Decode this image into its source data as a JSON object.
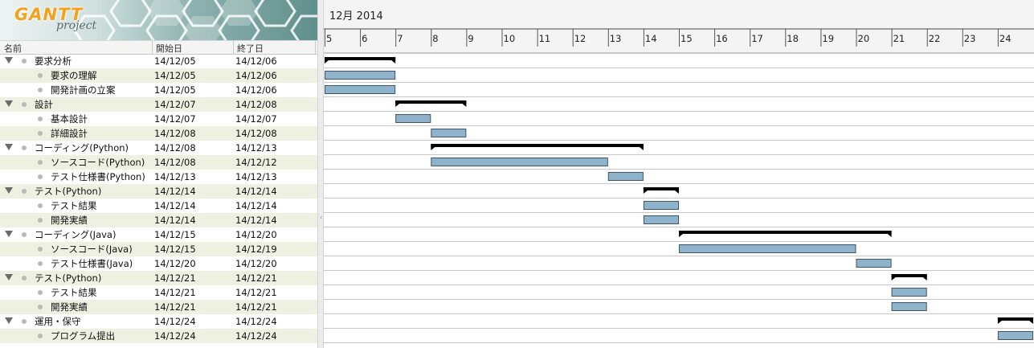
{
  "logo": {
    "brand": "GANTT",
    "sub": "project"
  },
  "table": {
    "headers": {
      "name": "名前",
      "start": "開始日",
      "end": "終了日"
    },
    "rows": [
      {
        "name": "要求分析",
        "start": "14/12/05",
        "end": "14/12/06",
        "group": true,
        "s": 5,
        "e": 7
      },
      {
        "name": "要求の理解",
        "start": "14/12/05",
        "end": "14/12/06",
        "group": false,
        "s": 5,
        "e": 7
      },
      {
        "name": "開発計画の立案",
        "start": "14/12/05",
        "end": "14/12/06",
        "group": false,
        "s": 5,
        "e": 7
      },
      {
        "name": "設計",
        "start": "14/12/07",
        "end": "14/12/08",
        "group": true,
        "s": 7,
        "e": 9
      },
      {
        "name": "基本設計",
        "start": "14/12/07",
        "end": "14/12/07",
        "group": false,
        "s": 7,
        "e": 8
      },
      {
        "name": "詳細設計",
        "start": "14/12/08",
        "end": "14/12/08",
        "group": false,
        "s": 8,
        "e": 9
      },
      {
        "name": "コーディング(Python)",
        "start": "14/12/08",
        "end": "14/12/13",
        "group": true,
        "s": 8,
        "e": 14
      },
      {
        "name": "ソースコード(Python)",
        "start": "14/12/08",
        "end": "14/12/12",
        "group": false,
        "s": 8,
        "e": 13
      },
      {
        "name": "テスト仕様書(Python)",
        "start": "14/12/13",
        "end": "14/12/13",
        "group": false,
        "s": 13,
        "e": 14
      },
      {
        "name": "テスト(Python)",
        "start": "14/12/14",
        "end": "14/12/14",
        "group": true,
        "s": 14,
        "e": 15
      },
      {
        "name": "テスト結果",
        "start": "14/12/14",
        "end": "14/12/14",
        "group": false,
        "s": 14,
        "e": 15
      },
      {
        "name": "開発実績",
        "start": "14/12/14",
        "end": "14/12/14",
        "group": false,
        "s": 14,
        "e": 15
      },
      {
        "name": "コーディング(Java)",
        "start": "14/12/15",
        "end": "14/12/20",
        "group": true,
        "s": 15,
        "e": 21
      },
      {
        "name": "ソースコード(Java)",
        "start": "14/12/15",
        "end": "14/12/19",
        "group": false,
        "s": 15,
        "e": 20
      },
      {
        "name": "テスト仕様書(Java)",
        "start": "14/12/20",
        "end": "14/12/20",
        "group": false,
        "s": 20,
        "e": 21
      },
      {
        "name": "テスト(Python)",
        "start": "14/12/21",
        "end": "14/12/21",
        "group": true,
        "s": 21,
        "e": 22
      },
      {
        "name": "テスト結果",
        "start": "14/12/21",
        "end": "14/12/21",
        "group": false,
        "s": 21,
        "e": 22
      },
      {
        "name": "開発実績",
        "start": "14/12/21",
        "end": "14/12/21",
        "group": false,
        "s": 21,
        "e": 22
      },
      {
        "name": "運用・保守",
        "start": "14/12/24",
        "end": "14/12/24",
        "group": true,
        "s": 24,
        "e": 25
      },
      {
        "name": "プログラム提出",
        "start": "14/12/24",
        "end": "14/12/24",
        "group": false,
        "s": 24,
        "e": 25
      }
    ]
  },
  "timeline": {
    "month_label": "12月 2014",
    "days": [
      5,
      6,
      7,
      8,
      9,
      10,
      11,
      12,
      13,
      14,
      15,
      16,
      17,
      18,
      19,
      20,
      21,
      22,
      23,
      24
    ],
    "first_day": 5
  },
  "colors": {
    "task_bar": "#8fb3ca",
    "task_border": "#3d5565",
    "summary_bar": "#000000",
    "row_alt": "#eef0e2",
    "grid_line": "#c8c8c8"
  }
}
